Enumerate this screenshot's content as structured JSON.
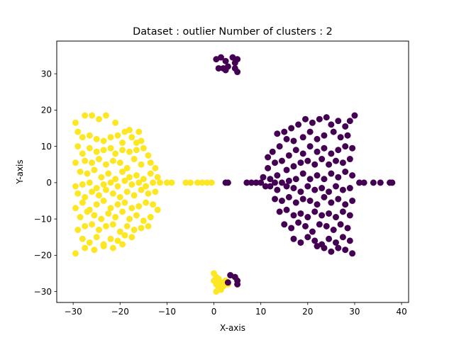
{
  "chart_data": {
    "type": "scatter",
    "title": "Dataset : outlier Number of clusters : 2",
    "xlabel": "X-axis",
    "ylabel": "Y-axis",
    "xlim": [
      -33.5,
      41.5
    ],
    "ylim": [
      -33.0,
      39.0
    ],
    "xticks": [
      -30,
      -20,
      -10,
      0,
      10,
      20,
      30,
      40
    ],
    "yticks": [
      -30,
      -20,
      -10,
      0,
      10,
      20,
      30
    ],
    "grid": false,
    "legend": "none",
    "colors": {
      "cluster_0": "#440154",
      "cluster_1": "#fde725"
    },
    "series": [
      {
        "color_key": "cluster_1",
        "points": [
          [
            -29.5,
            16.5
          ],
          [
            -29.0,
            14.0
          ],
          [
            -27.5,
            18.5
          ],
          [
            -26.0,
            18.5
          ],
          [
            -24.5,
            17.5
          ],
          [
            -23.0,
            18.5
          ],
          [
            -21.0,
            16.5
          ],
          [
            -19.0,
            14.0
          ],
          [
            -18.0,
            14.5
          ],
          [
            -16.0,
            14.0
          ],
          [
            -28.0,
            12.5
          ],
          [
            -26.5,
            13.0
          ],
          [
            -25.0,
            12.0
          ],
          [
            -23.5,
            11.5
          ],
          [
            -22.0,
            12.5
          ],
          [
            -20.5,
            13.0
          ],
          [
            -19.5,
            11.0
          ],
          [
            -17.5,
            12.5
          ],
          [
            -16.5,
            11.0
          ],
          [
            -15.5,
            11.5
          ],
          [
            -29.0,
            10.0
          ],
          [
            -28.0,
            8.0
          ],
          [
            -26.5,
            9.5
          ],
          [
            -25.0,
            8.5
          ],
          [
            -23.5,
            9.0
          ],
          [
            -22.0,
            9.5
          ],
          [
            -21.0,
            8.0
          ],
          [
            -19.5,
            9.0
          ],
          [
            -18.0,
            8.5
          ],
          [
            -16.5,
            9.0
          ],
          [
            -15.0,
            9.5
          ],
          [
            -14.0,
            7.5
          ],
          [
            -29.5,
            5.5
          ],
          [
            -27.5,
            6.0
          ],
          [
            -26.0,
            5.5
          ],
          [
            -24.5,
            6.5
          ],
          [
            -23.0,
            5.0
          ],
          [
            -21.5,
            6.0
          ],
          [
            -20.0,
            5.5
          ],
          [
            -18.5,
            4.0
          ],
          [
            -17.0,
            6.5
          ],
          [
            -15.5,
            5.0
          ],
          [
            -13.5,
            5.5
          ],
          [
            -12.5,
            4.0
          ],
          [
            -28.5,
            3.0
          ],
          [
            -27.0,
            2.5
          ],
          [
            -25.5,
            3.5
          ],
          [
            -24.0,
            1.5
          ],
          [
            -22.5,
            2.5
          ],
          [
            -21.0,
            1.0
          ],
          [
            -19.5,
            3.0
          ],
          [
            -18.0,
            1.5
          ],
          [
            -16.5,
            2.0
          ],
          [
            -15.0,
            1.0
          ],
          [
            -13.5,
            2.5
          ],
          [
            -12.0,
            1.5
          ],
          [
            -29.5,
            -1.0
          ],
          [
            -28.0,
            -0.5
          ],
          [
            -26.5,
            0.0
          ],
          [
            -25.0,
            -1.5
          ],
          [
            -23.5,
            -0.5
          ],
          [
            -22.0,
            0.0
          ],
          [
            -20.5,
            -1.0
          ],
          [
            -19.0,
            0.5
          ],
          [
            -17.5,
            -0.5
          ],
          [
            -16.0,
            0.0
          ],
          [
            -14.5,
            -1.0
          ],
          [
            -13.0,
            0.0
          ],
          [
            -11.5,
            0.0
          ],
          [
            -10.0,
            0.0
          ],
          [
            -9.0,
            0.0
          ],
          [
            -29.0,
            -3.0
          ],
          [
            -27.5,
            -4.0
          ],
          [
            -26.0,
            -2.5
          ],
          [
            -24.5,
            -3.5
          ],
          [
            -23.0,
            -2.0
          ],
          [
            -21.5,
            -3.0
          ],
          [
            -20.0,
            -4.0
          ],
          [
            -18.5,
            -2.5
          ],
          [
            -17.0,
            -3.5
          ],
          [
            -15.5,
            -2.0
          ],
          [
            -14.0,
            -3.0
          ],
          [
            -12.5,
            -2.5
          ],
          [
            -29.5,
            -7.0
          ],
          [
            -28.0,
            -5.5
          ],
          [
            -26.5,
            -7.5
          ],
          [
            -25.0,
            -6.0
          ],
          [
            -23.5,
            -5.0
          ],
          [
            -22.0,
            -7.0
          ],
          [
            -20.5,
            -6.0
          ],
          [
            -19.0,
            -5.5
          ],
          [
            -17.5,
            -7.0
          ],
          [
            -16.0,
            -6.5
          ],
          [
            -14.5,
            -5.5
          ],
          [
            -13.0,
            -6.0
          ],
          [
            -12.0,
            -7.5
          ],
          [
            -28.5,
            -9.5
          ],
          [
            -27.0,
            -8.0
          ],
          [
            -25.5,
            -9.0
          ],
          [
            -24.0,
            -10.0
          ],
          [
            -22.5,
            -8.5
          ],
          [
            -21.0,
            -9.5
          ],
          [
            -19.5,
            -8.0
          ],
          [
            -18.0,
            -10.0
          ],
          [
            -16.5,
            -9.0
          ],
          [
            -15.0,
            -10.5
          ],
          [
            -13.5,
            -9.5
          ],
          [
            -29.0,
            -13.0
          ],
          [
            -27.5,
            -12.0
          ],
          [
            -26.0,
            -11.5
          ],
          [
            -24.5,
            -13.0
          ],
          [
            -23.0,
            -12.0
          ],
          [
            -21.5,
            -11.5
          ],
          [
            -20.0,
            -13.5
          ],
          [
            -18.5,
            -12.0
          ],
          [
            -17.0,
            -13.0
          ],
          [
            -15.5,
            -12.5
          ],
          [
            -14.0,
            -12.0
          ],
          [
            -28.0,
            -15.5
          ],
          [
            -26.5,
            -16.5
          ],
          [
            -25.0,
            -15.0
          ],
          [
            -23.5,
            -17.0
          ],
          [
            -22.0,
            -15.5
          ],
          [
            -20.5,
            -16.0
          ],
          [
            -19.0,
            -14.5
          ],
          [
            -17.5,
            -15.0
          ],
          [
            -29.5,
            -19.5
          ],
          [
            -27.5,
            -18.0
          ],
          [
            -25.5,
            -18.5
          ],
          [
            -23.5,
            -17.5
          ],
          [
            -21.5,
            -18.0
          ],
          [
            -19.5,
            -17.0
          ],
          [
            -6.0,
            0.0
          ],
          [
            -5.0,
            0.0
          ],
          [
            -3.5,
            0.0
          ],
          [
            -2.5,
            0.0
          ],
          [
            -1.5,
            0.0
          ],
          [
            -0.5,
            0.0
          ],
          [
            0.0,
            -25.0
          ],
          [
            0.5,
            -26.0
          ],
          [
            0.0,
            -27.0
          ],
          [
            0.5,
            -28.0
          ],
          [
            1.0,
            -29.0
          ],
          [
            0.5,
            -30.0
          ],
          [
            1.5,
            -27.5
          ],
          [
            2.0,
            -28.5
          ],
          [
            1.0,
            -26.5
          ],
          [
            2.5,
            -27.0
          ],
          [
            3.0,
            -28.0
          ],
          [
            1.5,
            -29.5
          ]
        ]
      },
      {
        "color_key": "cluster_0",
        "points": [
          [
            0.5,
            34.0
          ],
          [
            1.5,
            34.5
          ],
          [
            2.5,
            33.5
          ],
          [
            4.0,
            34.5
          ],
          [
            5.0,
            34.0
          ],
          [
            4.5,
            33.0
          ],
          [
            1.0,
            31.5
          ],
          [
            2.0,
            31.5
          ],
          [
            3.0,
            32.0
          ],
          [
            2.5,
            31.0
          ],
          [
            4.5,
            31.5
          ],
          [
            5.0,
            30.5
          ],
          [
            3.5,
            -25.5
          ],
          [
            4.5,
            -26.0
          ],
          [
            5.0,
            -27.0
          ],
          [
            5.0,
            -28.0
          ],
          [
            3.0,
            -27.5
          ],
          [
            2.5,
            0.0
          ],
          [
            3.0,
            0.0
          ],
          [
            7.0,
            0.0
          ],
          [
            8.0,
            0.0
          ],
          [
            9.0,
            0.0
          ],
          [
            10.0,
            0.0
          ],
          [
            10.5,
            1.5
          ],
          [
            11.0,
            -1.0
          ],
          [
            31.0,
            0.0
          ],
          [
            32.0,
            0.0
          ],
          [
            34.0,
            0.0
          ],
          [
            35.5,
            0.0
          ],
          [
            37.5,
            0.0
          ],
          [
            38.0,
            0.0
          ],
          [
            29.0,
            17.0
          ],
          [
            30.0,
            18.5
          ],
          [
            28.0,
            15.5
          ],
          [
            26.5,
            17.0
          ],
          [
            25.0,
            16.0
          ],
          [
            24.0,
            18.0
          ],
          [
            22.5,
            17.5
          ],
          [
            21.0,
            16.5
          ],
          [
            19.5,
            17.5
          ],
          [
            18.0,
            16.0
          ],
          [
            16.5,
            15.0
          ],
          [
            15.0,
            14.0
          ],
          [
            13.5,
            13.5
          ],
          [
            28.5,
            13.0
          ],
          [
            27.0,
            12.5
          ],
          [
            25.5,
            14.0
          ],
          [
            23.5,
            13.0
          ],
          [
            22.0,
            12.0
          ],
          [
            20.5,
            14.0
          ],
          [
            19.0,
            12.5
          ],
          [
            17.0,
            11.5
          ],
          [
            15.5,
            12.0
          ],
          [
            14.0,
            10.0
          ],
          [
            12.5,
            8.5
          ],
          [
            11.5,
            7.0
          ],
          [
            29.5,
            9.5
          ],
          [
            28.0,
            10.0
          ],
          [
            26.5,
            9.0
          ],
          [
            25.0,
            8.0
          ],
          [
            23.5,
            9.5
          ],
          [
            22.0,
            8.5
          ],
          [
            20.5,
            10.0
          ],
          [
            19.0,
            8.0
          ],
          [
            17.5,
            9.0
          ],
          [
            16.0,
            7.5
          ],
          [
            14.5,
            6.0
          ],
          [
            13.0,
            5.5
          ],
          [
            11.5,
            4.0
          ],
          [
            29.0,
            6.5
          ],
          [
            27.5,
            5.5
          ],
          [
            26.0,
            6.0
          ],
          [
            24.5,
            5.0
          ],
          [
            23.0,
            6.5
          ],
          [
            21.5,
            5.0
          ],
          [
            20.0,
            6.0
          ],
          [
            18.5,
            5.5
          ],
          [
            17.0,
            4.5
          ],
          [
            15.5,
            3.5
          ],
          [
            13.5,
            2.0
          ],
          [
            12.0,
            1.0
          ],
          [
            29.5,
            2.0
          ],
          [
            28.0,
            3.0
          ],
          [
            26.5,
            1.5
          ],
          [
            25.0,
            2.5
          ],
          [
            23.5,
            1.0
          ],
          [
            22.0,
            2.0
          ],
          [
            20.5,
            1.0
          ],
          [
            19.0,
            2.5
          ],
          [
            17.5,
            1.0
          ],
          [
            16.0,
            0.5
          ],
          [
            14.5,
            0.0
          ],
          [
            13.0,
            0.0
          ],
          [
            29.0,
            -1.5
          ],
          [
            27.5,
            -2.0
          ],
          [
            26.0,
            -1.0
          ],
          [
            24.5,
            -2.5
          ],
          [
            23.0,
            -1.5
          ],
          [
            21.5,
            -2.0
          ],
          [
            20.0,
            -1.0
          ],
          [
            18.5,
            -2.5
          ],
          [
            17.0,
            -1.5
          ],
          [
            15.5,
            -1.0
          ],
          [
            13.5,
            -2.0
          ],
          [
            12.0,
            -1.0
          ],
          [
            29.5,
            -5.0
          ],
          [
            28.0,
            -6.0
          ],
          [
            26.5,
            -4.5
          ],
          [
            25.0,
            -5.5
          ],
          [
            23.5,
            -4.0
          ],
          [
            22.0,
            -6.0
          ],
          [
            20.5,
            -5.0
          ],
          [
            19.0,
            -4.5
          ],
          [
            17.5,
            -5.5
          ],
          [
            16.0,
            -4.0
          ],
          [
            14.5,
            -5.0
          ],
          [
            13.0,
            -4.5
          ],
          [
            29.0,
            -9.0
          ],
          [
            27.5,
            -8.0
          ],
          [
            26.0,
            -9.5
          ],
          [
            24.5,
            -8.5
          ],
          [
            23.0,
            -9.0
          ],
          [
            21.5,
            -8.0
          ],
          [
            20.0,
            -9.5
          ],
          [
            18.5,
            -8.5
          ],
          [
            17.0,
            -9.0
          ],
          [
            15.5,
            -7.5
          ],
          [
            14.0,
            -8.0
          ],
          [
            28.5,
            -12.5
          ],
          [
            27.0,
            -11.5
          ],
          [
            25.5,
            -13.0
          ],
          [
            24.0,
            -12.0
          ],
          [
            22.5,
            -11.5
          ],
          [
            21.0,
            -13.5
          ],
          [
            19.5,
            -12.0
          ],
          [
            18.0,
            -11.0
          ],
          [
            16.5,
            -12.5
          ],
          [
            15.0,
            -11.5
          ],
          [
            29.0,
            -16.0
          ],
          [
            27.5,
            -15.0
          ],
          [
            26.0,
            -16.5
          ],
          [
            24.5,
            -15.5
          ],
          [
            23.0,
            -17.0
          ],
          [
            21.5,
            -16.0
          ],
          [
            20.0,
            -15.0
          ],
          [
            18.5,
            -16.5
          ],
          [
            17.0,
            -15.5
          ],
          [
            29.5,
            -19.5
          ],
          [
            28.0,
            -18.5
          ],
          [
            26.5,
            -18.0
          ],
          [
            25.0,
            -19.0
          ],
          [
            23.5,
            -18.0
          ],
          [
            22.0,
            -17.5
          ]
        ]
      }
    ]
  }
}
